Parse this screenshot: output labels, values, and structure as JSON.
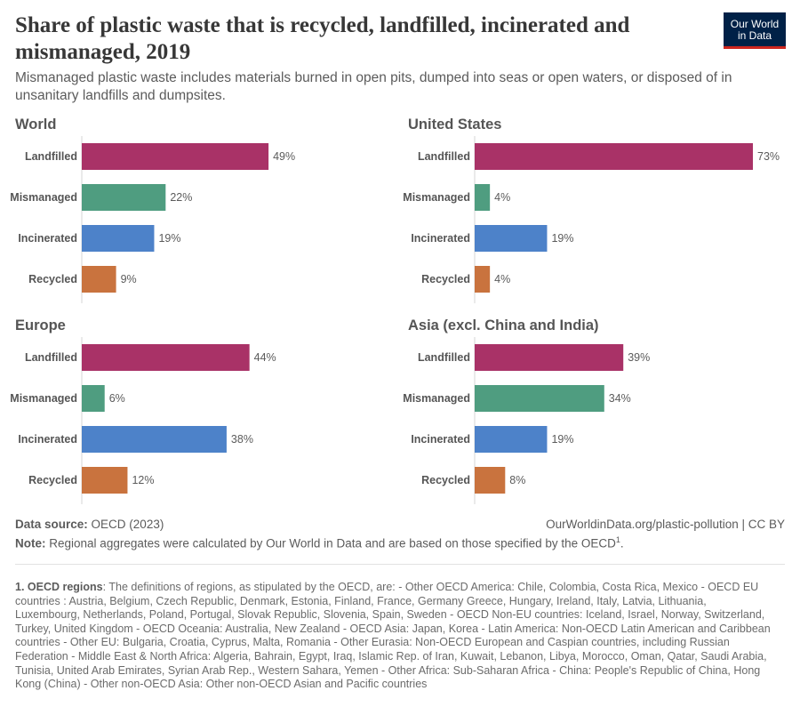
{
  "header": {
    "title": "Share of plastic waste that is recycled, landfilled, incinerated and mismanaged, 2019",
    "subtitle": "Mismanaged plastic waste includes materials burned in open pits, dumped into seas or open waters, or disposed of in unsanitary landfills and dumpsites.",
    "logo_line1": "Our World",
    "logo_line2": "in Data"
  },
  "colors": {
    "Landfilled": "#a93267",
    "Mismanaged": "#4f9d80",
    "Incinerated": "#4d82c9",
    "Recycled": "#c9733e"
  },
  "chart_data": [
    {
      "type": "bar",
      "title": "World",
      "categories": [
        "Landfilled",
        "Mismanaged",
        "Incinerated",
        "Recycled"
      ],
      "values": [
        49,
        22,
        19,
        9
      ],
      "value_labels": [
        "49%",
        "22%",
        "19%",
        "9%"
      ],
      "xlim": [
        0,
        73
      ]
    },
    {
      "type": "bar",
      "title": "United States",
      "categories": [
        "Landfilled",
        "Mismanaged",
        "Incinerated",
        "Recycled"
      ],
      "values": [
        73,
        4,
        19,
        4
      ],
      "value_labels": [
        "73%",
        "4%",
        "19%",
        "4%"
      ],
      "xlim": [
        0,
        73
      ]
    },
    {
      "type": "bar",
      "title": "Europe",
      "categories": [
        "Landfilled",
        "Mismanaged",
        "Incinerated",
        "Recycled"
      ],
      "values": [
        44,
        6,
        38,
        12
      ],
      "value_labels": [
        "44%",
        "6%",
        "38%",
        "12%"
      ],
      "xlim": [
        0,
        73
      ]
    },
    {
      "type": "bar",
      "title": "Asia (excl. China and India)",
      "categories": [
        "Landfilled",
        "Mismanaged",
        "Incinerated",
        "Recycled"
      ],
      "values": [
        39,
        34,
        19,
        8
      ],
      "value_labels": [
        "39%",
        "34%",
        "19%",
        "8%"
      ],
      "xlim": [
        0,
        73
      ]
    }
  ],
  "footer": {
    "source_label": "Data source:",
    "source_text": "OECD (2023)",
    "url_text": "OurWorldinData.org/plastic-pollution | CC BY",
    "note_label": "Note:",
    "note_text": "Regional aggregates were calculated by Our World in Data and are based on those specified by the OECD",
    "note_sup": "1",
    "note_end": ".",
    "footnote_label": "1. OECD regions",
    "footnote_text": ": The definitions of regions, as stipulated by the OECD, are: - Other OECD America: Chile, Colombia, Costa Rica, Mexico - OECD EU countries : Austria, Belgium, Czech Republic, Denmark, Estonia, Finland, France, Germany Greece, Hungary, Ireland, Italy, Latvia, Lithuania, Luxembourg, Netherlands, Poland, Portugal, Slovak Republic, Slovenia, Spain, Sweden - OECD Non-EU countries: Iceland, Israel, Norway, Switzerland, Turkey, United Kingdom - OECD Oceania: Australia, New Zealand - OECD Asia: Japan, Korea - Latin America: Non-OECD Latin American and Caribbean countries - Other EU: Bulgaria, Croatia, Cyprus, Malta, Romania - Other Eurasia: Non-OECD European and Caspian countries, including Russian Federation - Middle East & North Africa: Algeria, Bahrain, Egypt, Iraq, Islamic Rep. of Iran, Kuwait, Lebanon, Libya, Morocco, Oman, Qatar, Saudi Arabia, Tunisia, United Arab Emirates, Syrian Arab Rep., Western Sahara, Yemen - Other Africa: Sub-Saharan Africa - China: People's Republic of China, Hong Kong (China) - Other non-OECD Asia: Other non-OECD Asian and Pacific countries"
  }
}
